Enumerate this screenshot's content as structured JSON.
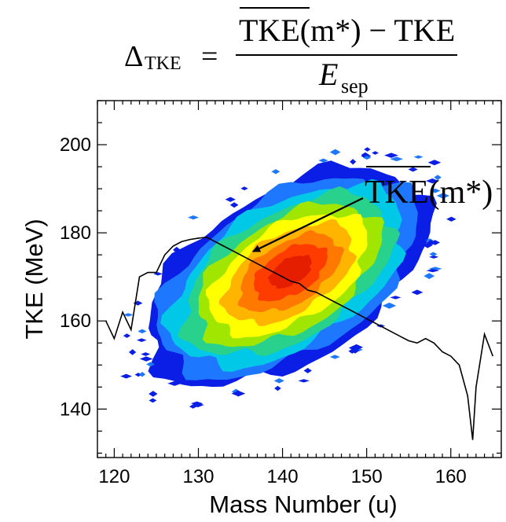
{
  "formula": {
    "lhs_symbol": "Δ",
    "lhs_subscript": "TKE",
    "equals": "=",
    "numerator_bar": "TKE",
    "numerator_arg": "(m*)",
    "numerator_rest": " − TKE",
    "denominator_symbol": "E",
    "denominator_subscript": "sep"
  },
  "annotation": {
    "bar_text": "TKE",
    "arg_text": "(m*)"
  },
  "chart_data": {
    "type": "heatmap",
    "title": "",
    "xlabel": "Mass Number (u)",
    "ylabel": "TKE (MeV)",
    "xlim": [
      118,
      166
    ],
    "ylim": [
      129,
      210
    ],
    "x_ticks": [
      120,
      130,
      140,
      150,
      160
    ],
    "y_ticks": [
      140,
      160,
      180,
      200
    ],
    "grid": false,
    "colormap": [
      "#0a1ee6",
      "#1e78ff",
      "#00c8e6",
      "#28d28c",
      "#a0e600",
      "#ffff00",
      "#ffb400",
      "#ff7800",
      "#ff3c00",
      "#e61e00"
    ],
    "density_peak": {
      "x": 140.5,
      "y": 170
    },
    "density_extent": {
      "x": [
        122,
        158
      ],
      "y": [
        143,
        203
      ]
    },
    "mean_tke_curve": {
      "name": "TKE(m*)",
      "x": [
        119,
        120,
        121,
        122,
        123,
        124,
        125,
        126,
        127,
        128,
        129,
        130,
        131,
        132,
        133,
        134,
        135,
        136,
        137,
        138,
        139,
        140,
        141,
        142,
        143,
        144,
        145,
        146,
        147,
        148,
        149,
        150,
        151,
        152,
        153,
        154,
        155,
        156,
        157,
        158,
        159,
        160,
        161,
        162,
        162.6,
        163,
        164,
        165
      ],
      "y": [
        160,
        156,
        162,
        158,
        170,
        171,
        171,
        175,
        177,
        178,
        178.5,
        178.8,
        179,
        178,
        177,
        176,
        175,
        174,
        173,
        172,
        171,
        170,
        169,
        168.5,
        167,
        166.5,
        165.5,
        164.5,
        163.5,
        162.5,
        161.5,
        160.5,
        159.5,
        158.5,
        157.5,
        156.5,
        155.5,
        155,
        156,
        155,
        153,
        152,
        150,
        143,
        133,
        145,
        157,
        152
      ]
    }
  }
}
